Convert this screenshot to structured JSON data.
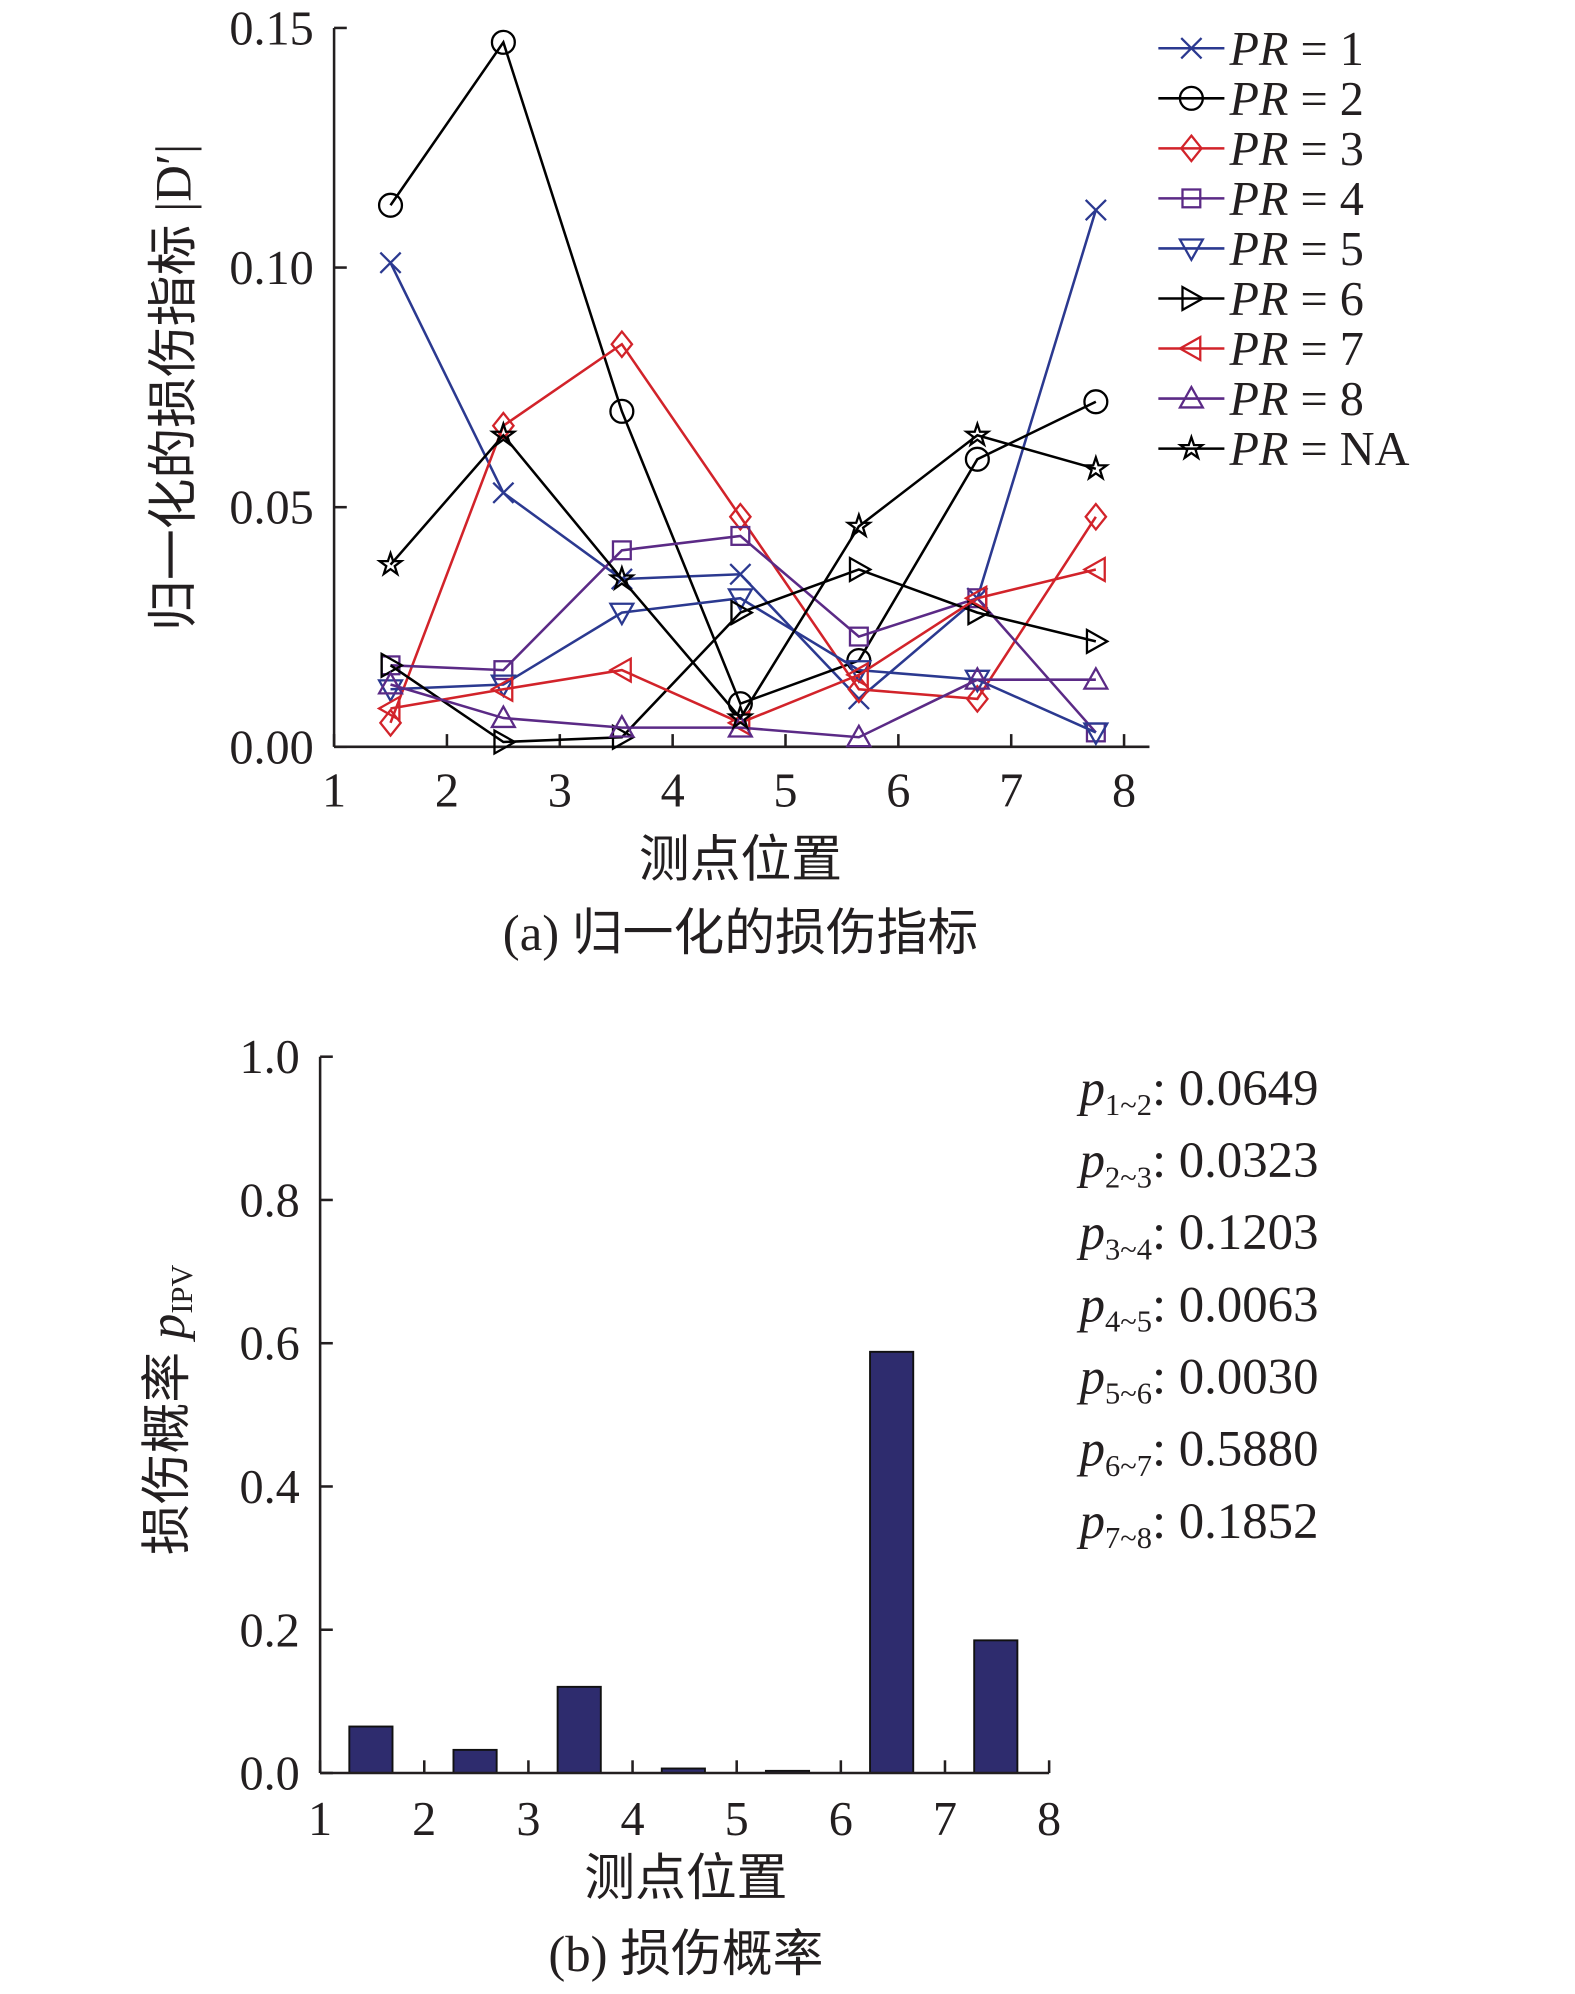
{
  "chart_data": [
    {
      "type": "line",
      "title": "(a) 归一化的损伤指标",
      "xlabel": "测点位置",
      "ylabel": "归一化的损伤指标 |D′|",
      "xlim": [
        1,
        8
      ],
      "ylim": [
        0,
        0.15
      ],
      "xticks": [
        "1",
        "2",
        "3",
        "4",
        "5",
        "6",
        "7",
        "8"
      ],
      "yticks": [
        "0.00",
        "0.05",
        "0.10",
        "0.15"
      ],
      "grid": false,
      "legend_position": "top-right",
      "x": [
        1.5,
        2.5,
        3.55,
        4.6,
        5.65,
        6.7,
        7.75
      ],
      "series": [
        {
          "name": "PR = 1",
          "prefix": "PR",
          "suffix": " = 1",
          "marker": "x",
          "color": "#2b3990",
          "values": [
            0.101,
            0.053,
            0.035,
            0.036,
            0.01,
            0.031,
            0.112
          ]
        },
        {
          "name": "PR = 2",
          "prefix": "PR",
          "suffix": " = 2",
          "marker": "circle",
          "color": "#000000",
          "values": [
            0.113,
            0.147,
            0.07,
            0.009,
            0.018,
            0.06,
            0.072
          ]
        },
        {
          "name": "PR = 3",
          "prefix": "PR",
          "suffix": " = 3",
          "marker": "diamond",
          "color": "#d2232a",
          "values": [
            0.005,
            0.067,
            0.084,
            0.048,
            0.012,
            0.01,
            0.048
          ]
        },
        {
          "name": "PR = 4",
          "prefix": "PR",
          "suffix": " = 4",
          "marker": "square",
          "color": "#5b2a86",
          "values": [
            0.017,
            0.016,
            0.041,
            0.044,
            0.023,
            0.031,
            0.003
          ]
        },
        {
          "name": "PR = 5",
          "prefix": "PR",
          "suffix": " = 5",
          "marker": "triangle-down",
          "color": "#2b3990",
          "values": [
            0.012,
            0.013,
            0.028,
            0.031,
            0.016,
            0.014,
            0.003
          ]
        },
        {
          "name": "PR = 6",
          "prefix": "PR",
          "suffix": " = 6",
          "marker": "triangle-right",
          "color": "#000000",
          "values": [
            0.017,
            0.001,
            0.002,
            0.028,
            0.037,
            0.028,
            0.022
          ]
        },
        {
          "name": "PR = 7",
          "prefix": "PR",
          "suffix": " = 7",
          "marker": "triangle-left",
          "color": "#d2232a",
          "values": [
            0.008,
            0.012,
            0.016,
            0.005,
            0.015,
            0.031,
            0.037
          ]
        },
        {
          "name": "PR = 8",
          "prefix": "PR",
          "suffix": " = 8",
          "marker": "triangle-up",
          "color": "#5b2a86",
          "values": [
            0.013,
            0.006,
            0.004,
            0.004,
            0.002,
            0.014,
            0.014
          ]
        },
        {
          "name": "PR = NA",
          "prefix": "PR",
          "suffix": " = NA",
          "marker": "star",
          "color": "#000000",
          "values": [
            0.038,
            0.065,
            0.035,
            0.006,
            0.046,
            0.065,
            0.058
          ]
        }
      ]
    },
    {
      "type": "bar",
      "title": "(b) 损伤概率",
      "xlabel": "测点位置",
      "ylabel": "损伤概率 ",
      "ylabel_symbol": "p",
      "ylabel_sub": "IPV",
      "xlim": [
        1,
        8
      ],
      "ylim": [
        0,
        1.0
      ],
      "xticks": [
        "1",
        "2",
        "3",
        "4",
        "5",
        "6",
        "7",
        "8"
      ],
      "yticks": [
        "0.0",
        "0.2",
        "0.4",
        "0.6",
        "0.8",
        "1.0"
      ],
      "grid": false,
      "bar_color": "#2e2c6e",
      "categories": [
        "1~2",
        "2~3",
        "3~4",
        "4~5",
        "5~6",
        "6~7",
        "7~8"
      ],
      "x": [
        1.5,
        2.5,
        3.5,
        4.5,
        5.5,
        6.5,
        7.5
      ],
      "values": [
        0.0649,
        0.0323,
        0.1203,
        0.0063,
        0.003,
        0.588,
        0.1852
      ],
      "annotations": [
        {
          "symbol": "p",
          "sub": "1~2",
          "text": ": 0.0649"
        },
        {
          "symbol": "p",
          "sub": "2~3",
          "text": ": 0.0323"
        },
        {
          "symbol": "p",
          "sub": "3~4",
          "text": ": 0.1203"
        },
        {
          "symbol": "p",
          "sub": "4~5",
          "text": ": 0.0063"
        },
        {
          "symbol": "p",
          "sub": "5~6",
          "text": ": 0.0030"
        },
        {
          "symbol": "p",
          "sub": "6~7",
          "text": ": 0.5880"
        },
        {
          "symbol": "p",
          "sub": "7~8",
          "text": ": 0.1852"
        }
      ]
    }
  ]
}
